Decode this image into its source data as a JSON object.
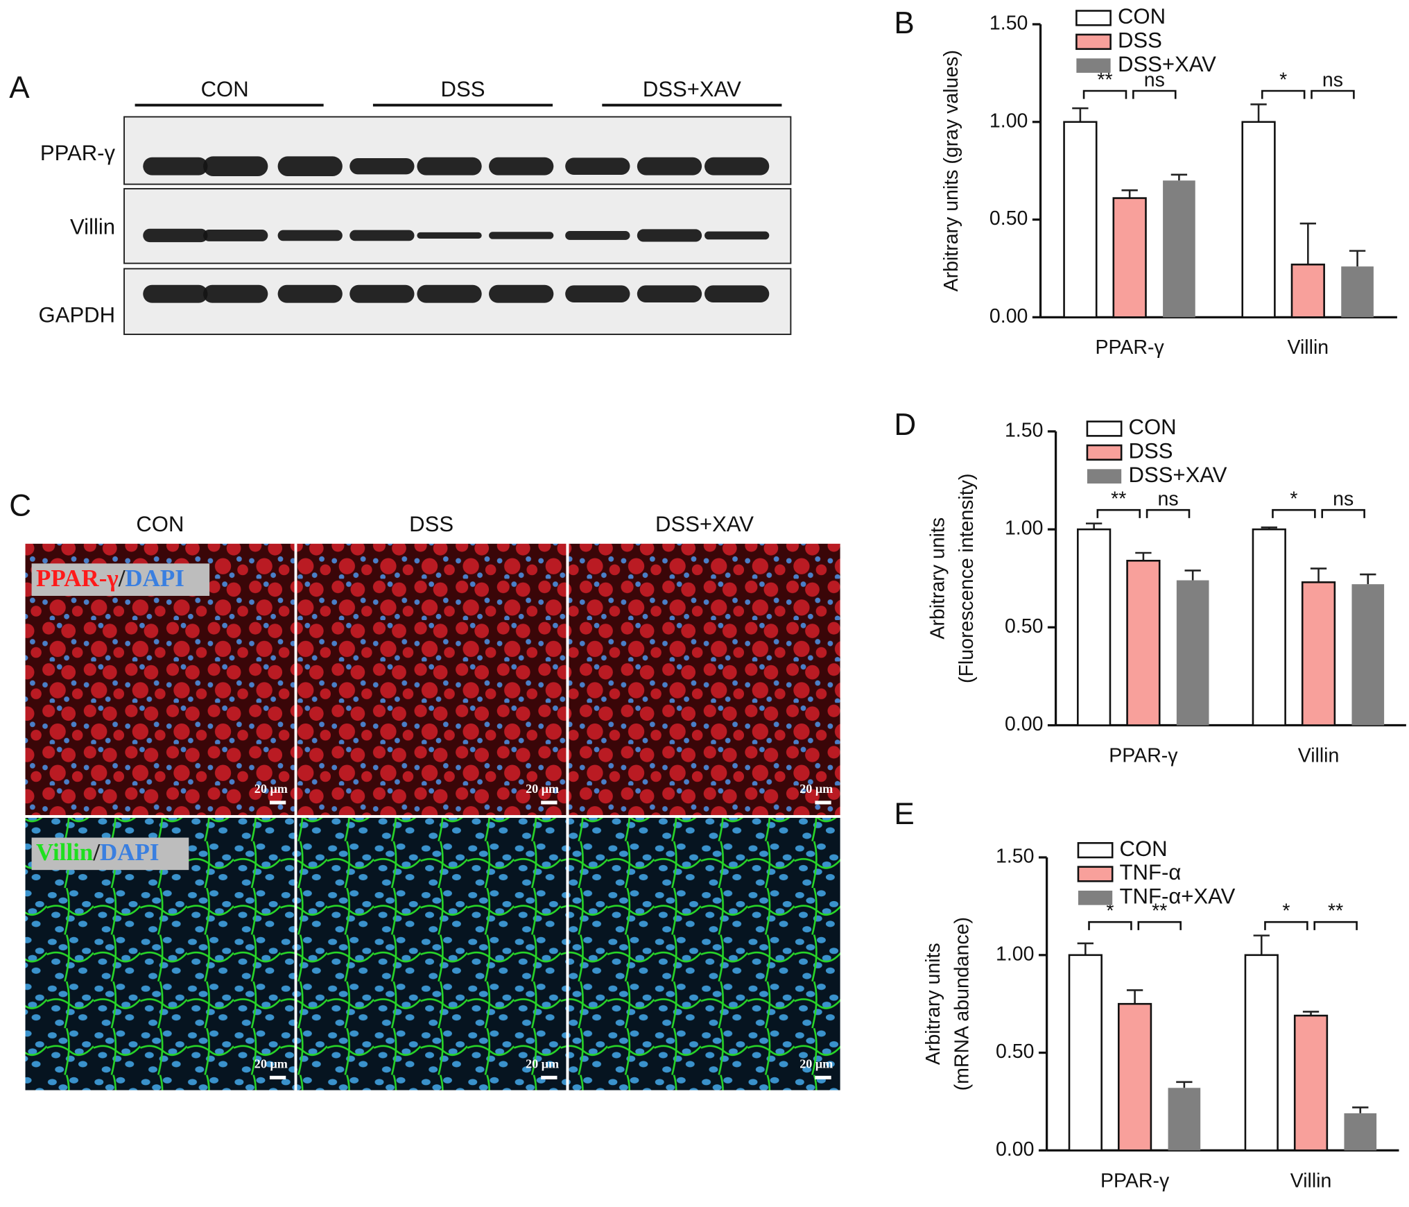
{
  "panel_a": {
    "label": "A",
    "groups": [
      "CON",
      "DSS",
      "DSS+XAV"
    ],
    "rows": [
      "PPAR-γ",
      "Villin",
      "GAPDH"
    ]
  },
  "panel_c": {
    "label": "C",
    "columns": [
      "CON",
      "DSS",
      "DSS+XAV"
    ],
    "rows": [
      {
        "stain": "PPAR-γ",
        "sep": "/",
        "counter": "DAPI"
      },
      {
        "stain": "Villin",
        "sep": "/",
        "counter": "DAPI"
      }
    ],
    "scale_bar": "20 μm"
  },
  "chart_data": [
    {
      "type": "bar",
      "panel": "B",
      "ylabel": [
        "Arbitrary units (gray values)"
      ],
      "categories": [
        "PPAR-γ",
        "Villin"
      ],
      "series": [
        {
          "name": "CON",
          "color": "#ffffff",
          "values": [
            1.0,
            1.0
          ],
          "errors": [
            0.07,
            0.09
          ]
        },
        {
          "name": "DSS",
          "color": "#f8a09b",
          "values": [
            0.61,
            0.27
          ],
          "errors": [
            0.04,
            0.21
          ]
        },
        {
          "name": "DSS+XAV",
          "color": "#808080",
          "values": [
            0.7,
            0.26
          ],
          "errors": [
            0.03,
            0.08
          ]
        }
      ],
      "annotations": [
        "**",
        "ns",
        "*",
        "ns"
      ],
      "ylim": [
        0,
        1.5
      ],
      "yticks": [
        {
          "value": 0,
          "label": "0.00"
        },
        {
          "value": 0.5,
          "label": "0.50"
        },
        {
          "value": 1,
          "label": "1.00"
        },
        {
          "value": 1.5,
          "label": "1.50"
        }
      ]
    },
    {
      "type": "bar",
      "panel": "D",
      "ylabel": [
        "Arbitrary units",
        "(Fluorescence intensity)"
      ],
      "categories": [
        "PPAR-γ",
        "Villin"
      ],
      "series": [
        {
          "name": "CON",
          "color": "#ffffff",
          "values": [
            1.0,
            1.0
          ],
          "errors": [
            0.03,
            0.01
          ]
        },
        {
          "name": "DSS",
          "color": "#f8a09b",
          "values": [
            0.84,
            0.73
          ],
          "errors": [
            0.04,
            0.07
          ]
        },
        {
          "name": "DSS+XAV",
          "color": "#808080",
          "values": [
            0.74,
            0.72
          ],
          "errors": [
            0.05,
            0.05
          ]
        }
      ],
      "annotations": [
        "**",
        "ns",
        "*",
        "ns"
      ],
      "ylim": [
        0,
        1.5
      ],
      "yticks": [
        {
          "value": 0,
          "label": "0.00"
        },
        {
          "value": 0.5,
          "label": "0.50"
        },
        {
          "value": 1,
          "label": "1.00"
        },
        {
          "value": 1.5,
          "label": "1.50"
        }
      ]
    },
    {
      "type": "bar",
      "panel": "E",
      "ylabel": [
        "Arbitrary units",
        "(mRNA abundance)"
      ],
      "categories": [
        "PPAR-γ",
        "Villin"
      ],
      "series": [
        {
          "name": "CON",
          "color": "#ffffff",
          "values": [
            1.0,
            1.0
          ],
          "errors": [
            0.06,
            0.1
          ]
        },
        {
          "name": "TNF-α",
          "color": "#f8a09b",
          "values": [
            0.75,
            0.69
          ],
          "errors": [
            0.07,
            0.02
          ]
        },
        {
          "name": "TNF-α+XAV",
          "color": "#808080",
          "values": [
            0.32,
            0.19
          ],
          "errors": [
            0.03,
            0.03
          ]
        }
      ],
      "annotations": [
        "*",
        "**",
        "*",
        "**"
      ],
      "ylim": [
        0,
        1.5
      ],
      "yticks": [
        {
          "value": 0,
          "label": "0.00"
        },
        {
          "value": 0.5,
          "label": "0.50"
        },
        {
          "value": 1,
          "label": "1.00"
        },
        {
          "value": 1.5,
          "label": "1.50"
        }
      ]
    }
  ]
}
